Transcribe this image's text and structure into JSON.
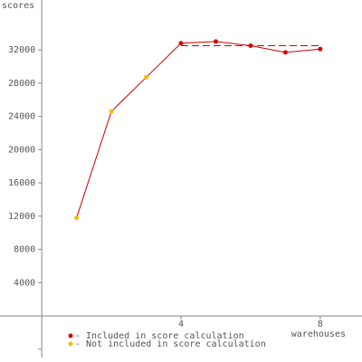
{
  "chart_data": {
    "type": "line",
    "y_label": "scores",
    "x_label": "warehouses",
    "x": [
      1,
      2,
      3,
      4,
      5,
      6,
      7,
      8
    ],
    "series": [
      {
        "color": "#cc0000",
        "values": [
          11800,
          24600,
          28700,
          32800,
          33000,
          32500,
          31700,
          32100
        ]
      }
    ],
    "included": [
      false,
      false,
      false,
      true,
      true,
      true,
      true,
      true
    ],
    "reference_line": {
      "x": [
        4,
        8
      ],
      "value": 32500,
      "color": "#cc0000",
      "dashed": true
    },
    "legend": [
      {
        "label": "- Included in score calculation",
        "color": "#dd0000"
      },
      {
        "label": "- Not included in score calculation",
        "color": "#f0c000"
      }
    ],
    "xlim": [
      -1.2,
      9.2
    ],
    "ylim": [
      -5000,
      38000
    ],
    "xticks": [
      4,
      8
    ],
    "yticks": [
      4000,
      8000,
      12000,
      16000,
      20000,
      24000,
      28000,
      32000
    ],
    "minor_yticks": [
      -4000
    ]
  }
}
